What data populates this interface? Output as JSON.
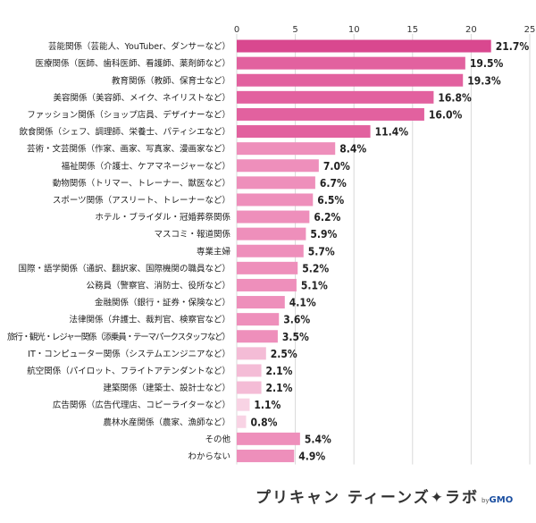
{
  "chart_data": {
    "type": "bar",
    "orientation": "horizontal",
    "title": "",
    "xlabel": "",
    "ylabel": "",
    "xlim": [
      0,
      25
    ],
    "ticks": [
      "0",
      "5",
      "10",
      "15",
      "20",
      "25"
    ],
    "grid": true,
    "value_suffix": "%",
    "categories": [
      "芸能関係（芸能人、YouTuber、ダンサーなど）",
      "医療関係（医師、歯科医師、看護師、薬剤師など）",
      "教育関係（教師、保育士など）",
      "美容関係（美容師、メイク、ネイリストなど）",
      "ファッション関係（ショップ店員、デザイナーなど）",
      "飲食関係（シェフ、調理師、栄養士、パティシエなど）",
      "芸術・文芸関係（作家、画家、写真家、漫画家など）",
      "福祉関係（介護士、ケアマネージャーなど）",
      "動物関係（トリマー、トレーナー、獣医など）",
      "スポーツ関係（アスリート、トレーナーなど）",
      "ホテル・ブライダル・冠婚葬祭関係",
      "マスコミ・報道関係",
      "専業主婦",
      "国際・語学関係（通訳、翻訳家、国際機関の職員など）",
      "公務員（警察官、消防士、役所など）",
      "金融関係（銀行・証券・保険など）",
      "法律関係（弁護士、裁判官、検察官など）",
      "旅行・観光・レジャー関係（添乗員・テーマパークスタッフなど）",
      "IT・コンピューター関係（システムエンジニアなど）",
      "航空関係（パイロット、フライトアテンダントなど）",
      "建築関係（建築士、設計士など）",
      "広告関係（広告代理店、コピーライターなど）",
      "農林水産関係（農家、漁師など）",
      "その他",
      "わからない"
    ],
    "values": [
      21.7,
      19.5,
      19.3,
      16.8,
      16.0,
      11.4,
      8.4,
      7.0,
      6.7,
      6.5,
      6.2,
      5.9,
      5.7,
      5.2,
      5.1,
      4.1,
      3.6,
      3.5,
      2.5,
      2.1,
      2.1,
      1.1,
      0.8,
      5.4,
      4.9
    ],
    "colors": {
      "top": "#d9488f",
      "high": "#e2619f",
      "mid": "#ee8fbb",
      "low": "#f4bcd6",
      "lowest": "#f8d3e4",
      "grid": "#d8d8d8"
    }
  },
  "branding": {
    "logo_text": "プリキャン ティーンズ✦ラボ",
    "by": "by",
    "company": "GMO"
  }
}
